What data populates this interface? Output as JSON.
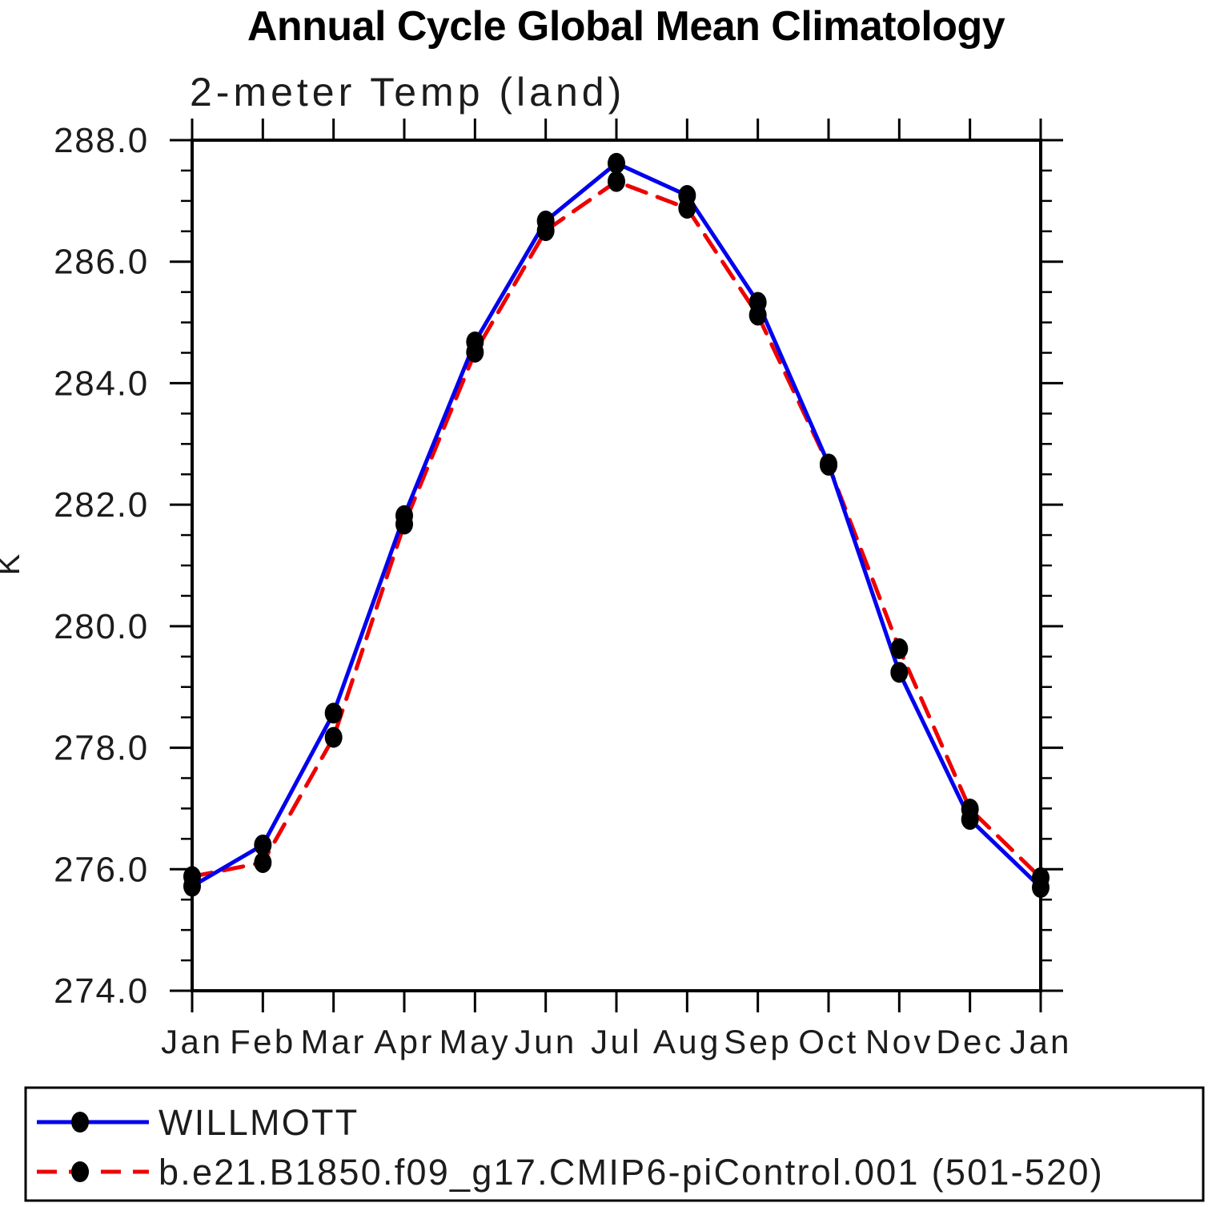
{
  "chart_data": {
    "type": "line",
    "title": "Annual Cycle Global Mean Climatology",
    "subtitle": "2-meter Temp (land)",
    "ylabel": "K",
    "xlabel": "",
    "ylim": [
      274.0,
      288.0
    ],
    "y_major_step": 2.0,
    "y_minor_step": 0.5,
    "grid": false,
    "legend_position": "bottom",
    "categories": [
      "Jan",
      "Feb",
      "Mar",
      "Apr",
      "May",
      "Jun",
      "Jul",
      "Aug",
      "Sep",
      "Oct",
      "Nov",
      "Dec",
      "Jan"
    ],
    "y_tick_labels": [
      "274.0",
      "276.0",
      "278.0",
      "280.0",
      "282.0",
      "284.0",
      "286.0",
      "288.0"
    ],
    "series": [
      {
        "name": "WILLMOTT",
        "color": "#0000ee",
        "line_style": "solid",
        "marker": "filled-circle",
        "marker_color": "#000000",
        "values": [
          275.72,
          276.4,
          278.57,
          281.82,
          284.68,
          286.67,
          287.62,
          287.09,
          285.33,
          282.67,
          279.24,
          276.82,
          275.7
        ]
      },
      {
        "name": "b.e21.B1850.f09_g17.CMIP6-piControl.001 (501-520)",
        "color": "#ee0000",
        "line_style": "dashed",
        "marker": "filled-circle",
        "marker_color": "#000000",
        "values": [
          275.88,
          276.11,
          278.17,
          281.68,
          284.51,
          286.51,
          287.32,
          286.88,
          285.12,
          282.65,
          279.63,
          276.99,
          275.86
        ]
      }
    ]
  }
}
